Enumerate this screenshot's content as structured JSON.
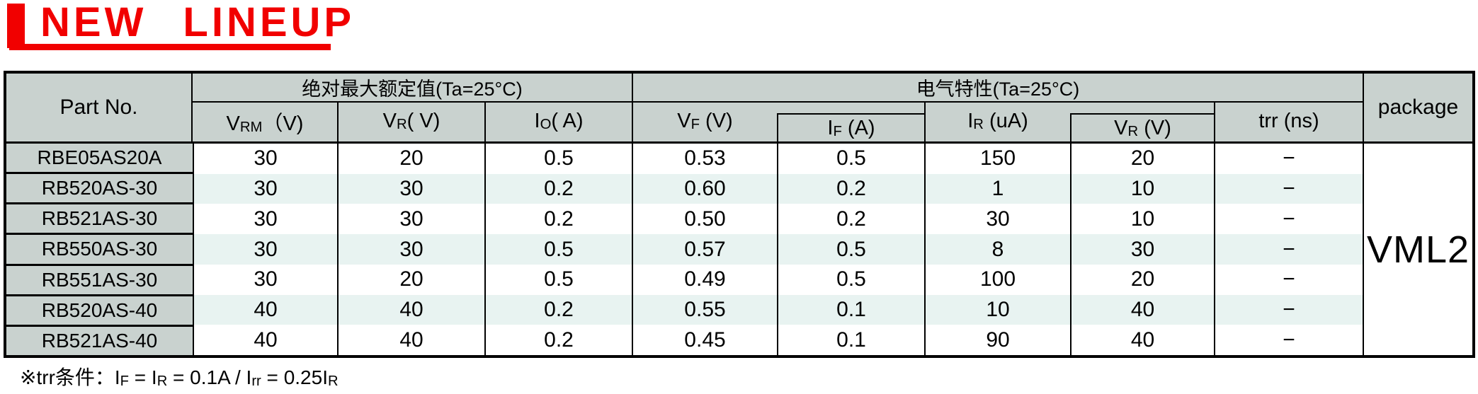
{
  "title": {
    "text": "NEW LINEUP"
  },
  "colors": {
    "accent_red": "#f10000",
    "header_gray": "#c9d2cf",
    "row_tint": "#e8f3f1",
    "border": "#000000"
  },
  "table": {
    "headers": {
      "part_no": "Part No.",
      "abs_max_group": "绝对最大额定值(Ta=25°C)",
      "elec_char_group": "电气特性(Ta=25°C)",
      "package": "package",
      "columns": [
        {
          "key": "vrm",
          "base": "V",
          "sub": "RM",
          "unit": "（V)"
        },
        {
          "key": "vr",
          "base": "V",
          "sub": "R",
          "unit": "( V)"
        },
        {
          "key": "io",
          "base": "I",
          "sub": "O",
          "unit": "( A)"
        },
        {
          "key": "vf",
          "base": "V",
          "sub": "F",
          "unit": " (V)"
        },
        {
          "key": "if",
          "base": "I",
          "sub": "F",
          "unit": " (A)"
        },
        {
          "key": "ir",
          "base": "I",
          "sub": "R",
          "unit": " (uA)"
        },
        {
          "key": "vr2",
          "base": "V",
          "sub": "R",
          "unit": " (V)"
        },
        {
          "key": "trr",
          "base": "trr",
          "sub": "",
          "unit": " (ns)"
        }
      ]
    },
    "rows": [
      {
        "part": "RBE05AS20A",
        "vrm": "30",
        "vr": "20",
        "io": "0.5",
        "vf": "0.53",
        "if": "0.5",
        "ir": "150",
        "vr2": "20",
        "trr": "−"
      },
      {
        "part": "RB520AS-30",
        "vrm": "30",
        "vr": "30",
        "io": "0.2",
        "vf": "0.60",
        "if": "0.2",
        "ir": "1",
        "vr2": "10",
        "trr": "−"
      },
      {
        "part": "RB521AS-30",
        "vrm": "30",
        "vr": "30",
        "io": "0.2",
        "vf": "0.50",
        "if": "0.2",
        "ir": "30",
        "vr2": "10",
        "trr": "−"
      },
      {
        "part": "RB550AS-30",
        "vrm": "30",
        "vr": "30",
        "io": "0.5",
        "vf": "0.57",
        "if": "0.5",
        "ir": "8",
        "vr2": "30",
        "trr": "−"
      },
      {
        "part": "RB551AS-30",
        "vrm": "30",
        "vr": "20",
        "io": "0.5",
        "vf": "0.49",
        "if": "0.5",
        "ir": "100",
        "vr2": "20",
        "trr": "−"
      },
      {
        "part": "RB520AS-40",
        "vrm": "40",
        "vr": "40",
        "io": "0.2",
        "vf": "0.55",
        "if": "0.1",
        "ir": "10",
        "vr2": "40",
        "trr": "−"
      },
      {
        "part": "RB521AS-40",
        "vrm": "40",
        "vr": "40",
        "io": "0.2",
        "vf": "0.45",
        "if": "0.1",
        "ir": "90",
        "vr2": "40",
        "trr": "−"
      }
    ],
    "package_value": "VML2",
    "tinted_row_indexes": [
      1,
      3,
      5
    ]
  },
  "note": {
    "segments": [
      {
        "t": "※trr条件：I"
      },
      {
        "t": "F",
        "sub": true
      },
      {
        "t": " = I"
      },
      {
        "t": "R",
        "sub": true
      },
      {
        "t": " = 0.1A / I"
      },
      {
        "t": "rr",
        "sub": true
      },
      {
        "t": " = 0.25I"
      },
      {
        "t": "R",
        "sub": true
      }
    ]
  }
}
